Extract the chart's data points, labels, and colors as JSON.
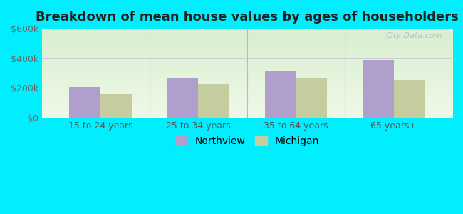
{
  "title": "Breakdown of mean house values by ages of householders",
  "categories": [
    "15 to 24 years",
    "25 to 34 years",
    "35 to 64 years",
    "65 years+"
  ],
  "northview_values": [
    205000,
    270000,
    310000,
    390000
  ],
  "michigan_values": [
    160000,
    225000,
    265000,
    255000
  ],
  "northview_color": "#b09fcc",
  "michigan_color": "#c5cc9f",
  "ylim": [
    0,
    600000
  ],
  "yticks": [
    0,
    200000,
    400000,
    600000
  ],
  "ytick_labels": [
    "$0",
    "$200k",
    "$400k",
    "$600k"
  ],
  "legend_northview": "Northview",
  "legend_michigan": "Michigan",
  "bg_top_color": "#d8efd0",
  "bg_bottom_color": "#f0f8e8",
  "outer_bg": "#00eeff",
  "watermark": "City-Data.com",
  "bar_width": 0.32,
  "title_fontsize": 13,
  "tick_fontsize": 9,
  "legend_fontsize": 10,
  "divider_color": "#bbbbbb",
  "grid_color": "#cccccc"
}
